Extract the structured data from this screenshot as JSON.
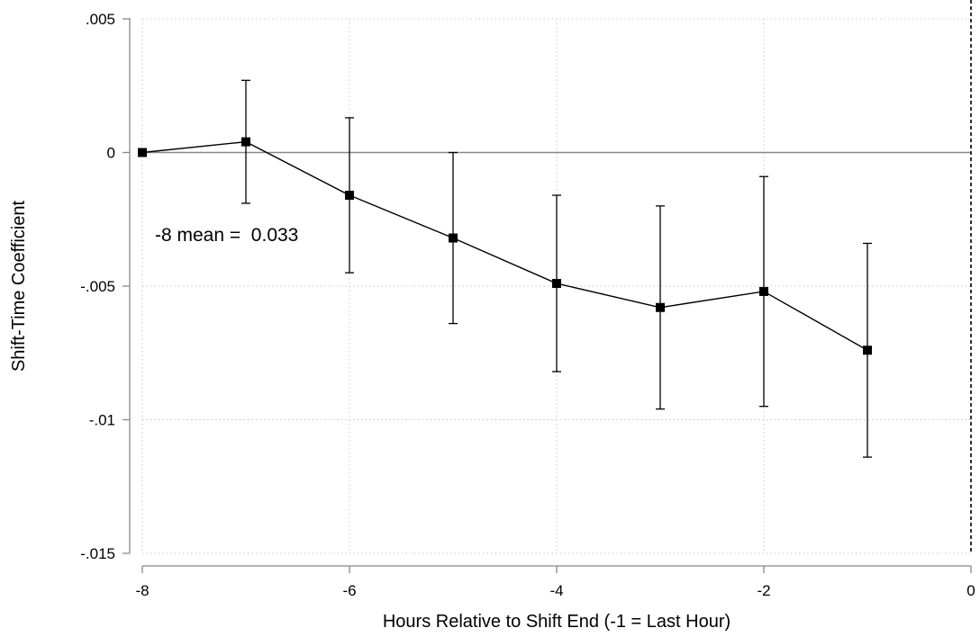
{
  "chart_data": {
    "type": "line",
    "title": "",
    "xlabel": "Hours Relative to Shift End (-1 = Last Hour)",
    "ylabel": "Shift-Time Coefficient",
    "xlim": [
      -8,
      0
    ],
    "ylim": [
      -0.015,
      0.005
    ],
    "x_ticks": [
      -8,
      -6,
      -4,
      -2,
      0
    ],
    "x_tick_labels": [
      "-8",
      "-6",
      "-4",
      "-2",
      "0"
    ],
    "y_ticks": [
      0.005,
      0,
      -0.005,
      -0.01,
      -0.015
    ],
    "y_tick_labels": [
      ".005",
      "0",
      "-.005",
      "-.01",
      "-.015"
    ],
    "grid": true,
    "reference_lines": {
      "horizontal_y": 0,
      "vertical_dashed_x": 0
    },
    "series": [
      {
        "marker": "square",
        "color": "#000000",
        "x": [
          -8,
          -7,
          -6,
          -5,
          -4,
          -3,
          -2,
          -1
        ],
        "y": [
          0,
          0.0004,
          -0.0016,
          -0.0032,
          -0.0049,
          -0.0058,
          -0.0052,
          -0.0074
        ],
        "ci_low": [
          0,
          -0.0019,
          -0.0045,
          -0.0064,
          -0.0082,
          -0.0096,
          -0.0095,
          -0.0114
        ],
        "ci_high": [
          0,
          0.0027,
          0.0013,
          0.0,
          -0.0016,
          -0.002,
          -0.0009,
          -0.0034
        ]
      }
    ],
    "annotations": [
      {
        "text": "-8 mean =  0.033",
        "x": -7.9,
        "y": -0.0031
      }
    ]
  }
}
